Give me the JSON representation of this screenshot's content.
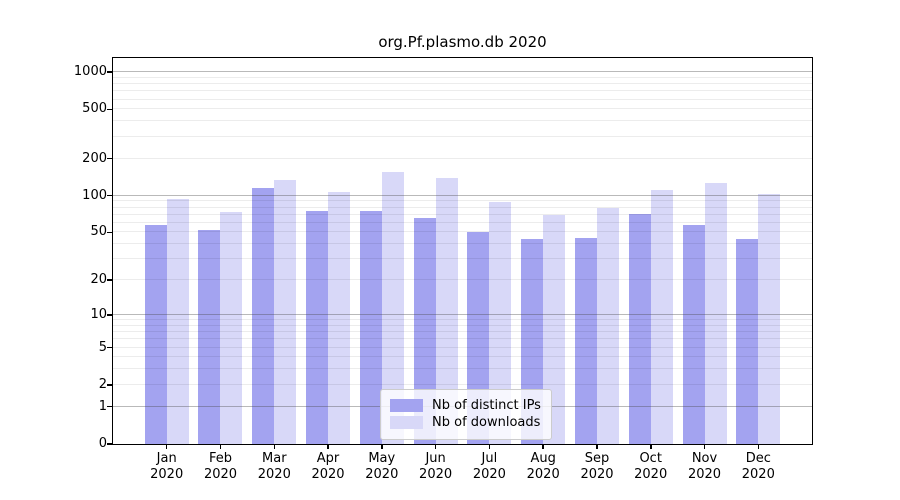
{
  "title": "org.Pf.plasmo.db 2020",
  "chart_data": {
    "type": "bar",
    "title": "org.Pf.plasmo.db 2020",
    "categories": [
      "Jan",
      "Feb",
      "Mar",
      "Apr",
      "May",
      "Jun",
      "Jul",
      "Aug",
      "Sep",
      "Oct",
      "Nov",
      "Dec"
    ],
    "category_year": "2020",
    "series": [
      {
        "name": "Nb of distinct IPs",
        "color": "#a3a3f0",
        "values": [
          57,
          52,
          115,
          75,
          75,
          66,
          50,
          44,
          45,
          71,
          58,
          44
        ]
      },
      {
        "name": "Nb of downloads",
        "color": "#d8d8f8",
        "values": [
          93,
          73,
          135,
          107,
          155,
          140,
          88,
          70,
          80,
          112,
          126,
          103
        ]
      }
    ],
    "xlabel": "",
    "ylabel": "",
    "y_scale": "log1p",
    "y_ticks": [
      0,
      1,
      2,
      5,
      10,
      20,
      50,
      100,
      200,
      500,
      1000
    ],
    "ylim": [
      0,
      1300
    ],
    "grid": true,
    "legend_position": "bottom-center-inside"
  },
  "colors": {
    "bar_ips": "#a3a3f0",
    "bar_downloads": "#d8d8f8",
    "axis": "#000000",
    "grid_major": "#c6c6c6",
    "grid_minor": "#ececec",
    "legend_border": "#cccccc"
  }
}
